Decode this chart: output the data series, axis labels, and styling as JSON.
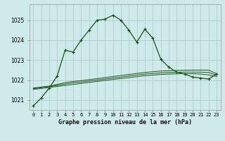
{
  "title": "Graphe pression niveau de la mer (hPa)",
  "background_color": "#ceeaea",
  "grid_color": "#b0cccc",
  "line_color_dark": "#1a5218",
  "x_labels": [
    "0",
    "1",
    "2",
    "3",
    "4",
    "5",
    "6",
    "7",
    "8",
    "9",
    "10",
    "11",
    "12",
    "13",
    "14",
    "15",
    "16",
    "17",
    "18",
    "19",
    "20",
    "21",
    "22",
    "23"
  ],
  "ylim": [
    1020.5,
    1025.8
  ],
  "yticks": [
    1021,
    1022,
    1023,
    1024,
    1025
  ],
  "series_main": [
    1020.7,
    1021.1,
    1021.6,
    1022.2,
    1023.5,
    1023.4,
    1024.0,
    1024.5,
    1025.0,
    1025.05,
    1025.25,
    1025.0,
    1024.5,
    1023.9,
    1024.55,
    1024.1,
    1023.05,
    1022.65,
    1022.4,
    1022.3,
    1022.15,
    1022.1,
    1022.05,
    1022.3
  ],
  "series_smooth1": [
    1021.6,
    1021.65,
    1021.7,
    1021.78,
    1021.87,
    1021.93,
    1021.97,
    1022.02,
    1022.07,
    1022.12,
    1022.18,
    1022.23,
    1022.28,
    1022.33,
    1022.38,
    1022.42,
    1022.45,
    1022.47,
    1022.48,
    1022.49,
    1022.5,
    1022.5,
    1022.5,
    1022.32
  ],
  "series_smooth2": [
    1021.57,
    1021.62,
    1021.67,
    1021.73,
    1021.8,
    1021.86,
    1021.9,
    1021.95,
    1022.0,
    1022.05,
    1022.1,
    1022.15,
    1022.2,
    1022.25,
    1022.3,
    1022.33,
    1022.36,
    1022.38,
    1022.39,
    1022.4,
    1022.4,
    1022.4,
    1022.38,
    1022.25
  ],
  "series_smooth3": [
    1021.53,
    1021.58,
    1021.63,
    1021.68,
    1021.73,
    1021.78,
    1021.83,
    1021.88,
    1021.93,
    1021.98,
    1022.03,
    1022.08,
    1022.12,
    1022.17,
    1022.22,
    1022.25,
    1022.28,
    1022.3,
    1022.31,
    1022.32,
    1022.32,
    1022.3,
    1022.26,
    1022.18
  ]
}
